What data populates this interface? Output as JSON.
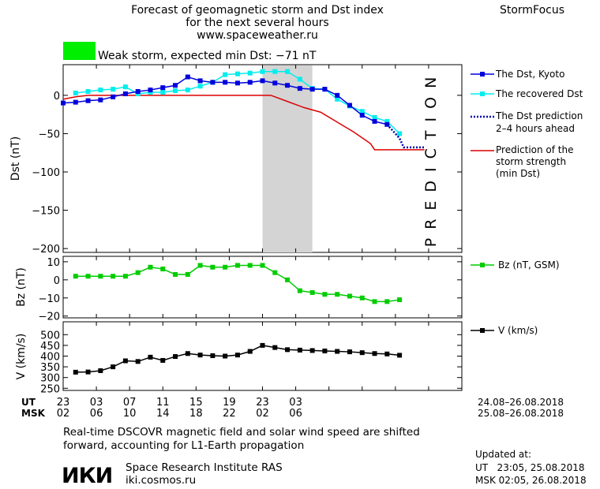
{
  "header": {
    "title_line1": "Forecast of geomagnetic storm and Dst index",
    "title_line2": "for the next several hours",
    "url": "www.spaceweather.ru",
    "brand": "StormFocus",
    "storm_status": "Weak storm, expected min Dst: −71 nT",
    "storm_color": "#00ee00"
  },
  "legend": {
    "dst_kyoto": "The Dst, Kyoto",
    "dst_recovered": "The recovered Dst",
    "dst_prediction_line1": "The Dst prediction",
    "dst_prediction_line2": "2–4 hours ahead",
    "strength_line1": "Prediction of the",
    "strength_line2": "storm strength",
    "strength_line3": "(min Dst)",
    "bz": "Bz (nT, GSM)",
    "v": "V (km/s)"
  },
  "prediction_label": "PREDICTION",
  "x_axis": {
    "ut_label": "UT",
    "msk_label": "MSK",
    "ut_ticks": [
      "23",
      "03",
      "07",
      "11",
      "15",
      "19",
      "23",
      "03"
    ],
    "msk_ticks": [
      "02",
      "06",
      "10",
      "14",
      "18",
      "22",
      "02",
      "06"
    ],
    "ut_range": "24.08–26.08.2018",
    "msk_range": "25.08–26.08.2018"
  },
  "footer": {
    "note_line1": "Real-time DSCOVR magnetic field and solar wind speed are shifted",
    "note_line2": "forward, accounting for L1-Earth propagation",
    "logo": "ИКИ",
    "institute": "Space Research Institute RAS",
    "site": "iki.cosmos.ru",
    "updated_label": "Updated at:",
    "updated_ut": "UT   23:05, 25.08.2018",
    "updated_msk": "MSK 02:05, 26.08.2018"
  },
  "colors": {
    "kyoto": "#0000dd",
    "recovered": "#00eeee",
    "prediction_dots": "#0000aa",
    "strength": "#dd0000",
    "bz": "#00cc00",
    "v": "#000000",
    "prediction_zone": "#d4d4d4"
  },
  "chart_data": [
    {
      "type": "line",
      "name": "Dst panel",
      "ylabel": "Dst (nT)",
      "ylim": [
        -205,
        40
      ],
      "yticks": [
        0,
        -50,
        -100,
        -150,
        -200
      ],
      "xlim": [
        23,
        71
      ],
      "prediction_zone_x": [
        47,
        53
      ],
      "series": [
        {
          "name": "The Dst, Kyoto",
          "x": [
            23,
            24.5,
            26,
            27.5,
            29,
            30.5,
            32,
            33.5,
            35,
            36.5,
            38,
            39.5,
            41,
            42.5,
            44,
            45.5,
            47,
            48.5,
            50,
            51.5,
            53,
            54.5,
            56,
            57.5,
            59,
            60.5,
            62,
            63.5,
            65,
            66.5
          ],
          "y": [
            -10,
            -9,
            -7,
            -6,
            -2,
            2,
            5,
            7,
            10,
            13,
            24,
            19,
            17,
            17,
            16,
            17,
            19,
            16,
            13,
            9,
            8,
            8,
            0,
            -13,
            -26,
            -34,
            -38,
            null,
            null,
            null
          ]
        },
        {
          "name": "The recovered Dst",
          "x": [
            23,
            24.5,
            26,
            27.5,
            29,
            30.5,
            32,
            33.5,
            35,
            36.5,
            38,
            39.5,
            41,
            42.5,
            44,
            45.5,
            47,
            48.5,
            50,
            51.5,
            53,
            54.5,
            56,
            57.5,
            59,
            60.5,
            62,
            63.5,
            65,
            66.5
          ],
          "y": [
            null,
            3,
            5,
            7,
            8,
            11,
            2,
            4,
            4,
            6,
            7,
            12,
            17,
            27,
            28,
            29,
            31,
            31,
            31,
            21,
            9,
            8,
            -5,
            -14,
            -21,
            -29,
            -34,
            -50,
            null,
            null
          ]
        },
        {
          "name": "The Dst prediction 2–4 hours ahead",
          "x": [
            62,
            63.5,
            64,
            65,
            66.5
          ],
          "y": [
            -38,
            -56,
            -68,
            -68,
            -68
          ]
        },
        {
          "name": "Prediction of the storm strength (min Dst)",
          "x": [
            23,
            24.5,
            26,
            28,
            31,
            34,
            37,
            40,
            43,
            46,
            47,
            48,
            50,
            52,
            54,
            56,
            58,
            60,
            60.5,
            62,
            66.5
          ],
          "y": [
            -5,
            -2,
            0,
            0,
            0,
            0,
            0,
            0,
            0,
            0,
            0,
            0,
            -8,
            -16,
            -22,
            -35,
            -48,
            -63,
            -71,
            -71,
            -71
          ]
        }
      ]
    },
    {
      "type": "line",
      "name": "Bz panel",
      "ylabel": "Bz (nT)",
      "ylim": [
        -21,
        13
      ],
      "yticks": [
        10,
        0,
        -10,
        -20
      ],
      "xlim": [
        23,
        71
      ],
      "series": [
        {
          "name": "Bz (nT, GSM)",
          "x": [
            24.5,
            26,
            27.5,
            29,
            30.5,
            32,
            33.5,
            35,
            36.5,
            38,
            39.5,
            41,
            42.5,
            44,
            45.5,
            47,
            48.5,
            50,
            51.5,
            53,
            54.5,
            56,
            57.5,
            59,
            60.5,
            62,
            63.5
          ],
          "y": [
            2,
            2,
            2,
            2,
            2,
            4,
            7,
            6,
            3,
            3,
            8,
            7,
            7,
            8,
            8,
            8,
            4,
            0,
            -6,
            -7,
            -8,
            -8,
            -9,
            -10,
            -12,
            -12,
            -11
          ]
        }
      ]
    },
    {
      "type": "line",
      "name": "V panel",
      "ylabel": "V (km/s)",
      "ylim": [
        240,
        560
      ],
      "yticks": [
        500,
        450,
        400,
        350,
        300,
        250
      ],
      "xlim": [
        23,
        71
      ],
      "series": [
        {
          "name": "V (km/s)",
          "x": [
            24.5,
            26,
            27.5,
            29,
            30.5,
            32,
            33.5,
            35,
            36.5,
            38,
            39.5,
            41,
            42.5,
            44,
            45.5,
            47,
            48.5,
            50,
            51.5,
            53,
            54.5,
            56,
            57.5,
            59,
            60.5,
            62,
            63.5
          ],
          "y": [
            325,
            326,
            332,
            350,
            378,
            375,
            395,
            380,
            398,
            412,
            405,
            402,
            400,
            405,
            422,
            450,
            440,
            430,
            428,
            426,
            424,
            422,
            420,
            416,
            412,
            410,
            404
          ]
        }
      ]
    }
  ]
}
